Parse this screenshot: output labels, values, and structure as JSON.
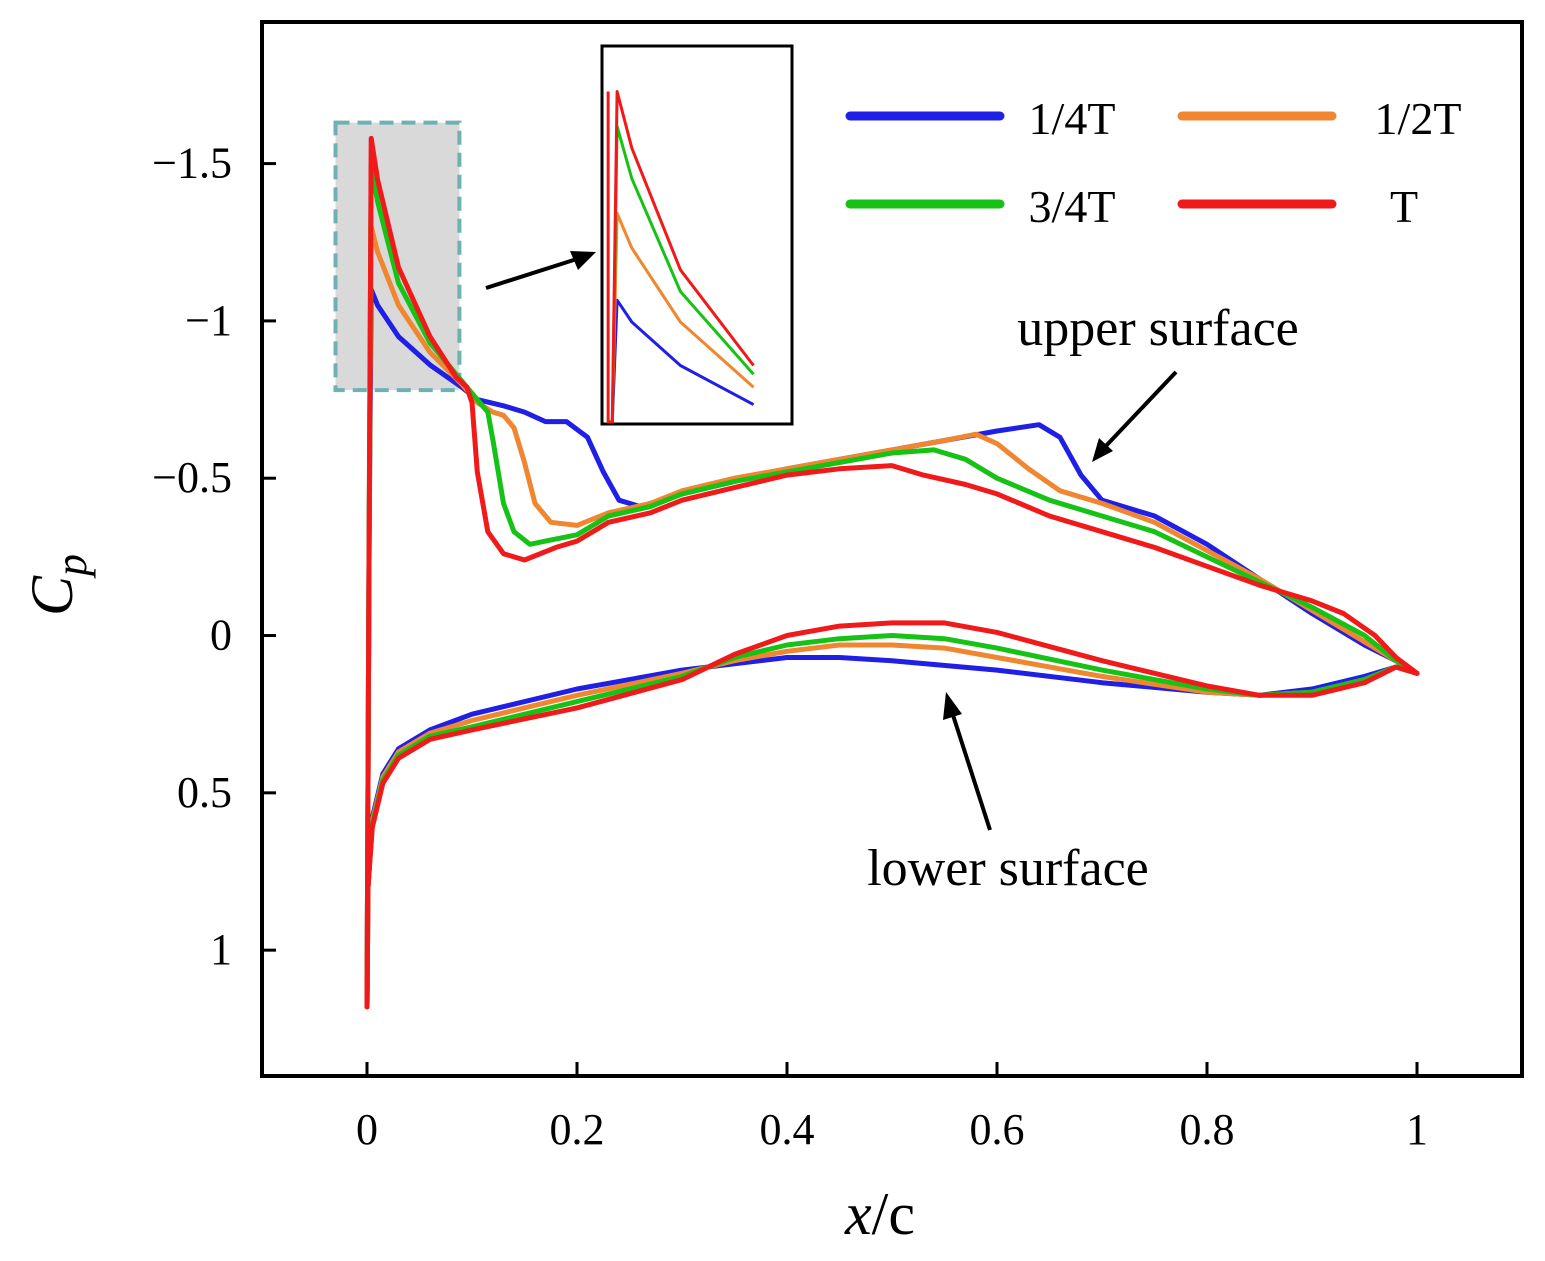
{
  "chart_data": {
    "type": "line",
    "xlabel_var": "x",
    "xlabel_rest": "/c",
    "ylabel_var": "C",
    "ylabel_sub": "p",
    "xlim": [
      -0.1,
      1.1
    ],
    "ylim": [
      1.4,
      -1.95
    ],
    "y_inverted": true,
    "xticks": [
      0,
      0.2,
      0.4,
      0.6,
      0.8,
      1
    ],
    "xtick_labels": [
      "0",
      "0.2",
      "0.4",
      "0.6",
      "0.8",
      "1"
    ],
    "yticks": [
      -1.5,
      -1,
      -0.5,
      0,
      0.5,
      1
    ],
    "ytick_labels": [
      "−1.5",
      "−1",
      "−0.5",
      "0",
      "0.5",
      "1"
    ],
    "grid": false,
    "legend_position": "top-right",
    "annotations": [
      "upper surface",
      "lower surface"
    ],
    "series": [
      {
        "name": "1/4T",
        "color": "#1f1fe6",
        "upper": [
          [
            0,
            1.18
          ],
          [
            0.002,
            -0.3
          ],
          [
            0.004,
            -1.1
          ],
          [
            0.01,
            -1.05
          ],
          [
            0.03,
            -0.95
          ],
          [
            0.06,
            -0.86
          ],
          [
            0.09,
            -0.79
          ],
          [
            0.105,
            -0.75
          ],
          [
            0.13,
            -0.73
          ],
          [
            0.15,
            -0.71
          ],
          [
            0.17,
            -0.68
          ],
          [
            0.19,
            -0.68
          ],
          [
            0.21,
            -0.63
          ],
          [
            0.225,
            -0.52
          ],
          [
            0.24,
            -0.43
          ],
          [
            0.26,
            -0.41
          ],
          [
            0.3,
            -0.45
          ],
          [
            0.35,
            -0.49
          ],
          [
            0.4,
            -0.53
          ],
          [
            0.45,
            -0.56
          ],
          [
            0.5,
            -0.59
          ],
          [
            0.55,
            -0.62
          ],
          [
            0.6,
            -0.65
          ],
          [
            0.64,
            -0.67
          ],
          [
            0.66,
            -0.63
          ],
          [
            0.68,
            -0.51
          ],
          [
            0.7,
            -0.43
          ],
          [
            0.75,
            -0.38
          ],
          [
            0.8,
            -0.29
          ],
          [
            0.85,
            -0.18
          ],
          [
            0.9,
            -0.07
          ],
          [
            0.95,
            0.03
          ],
          [
            0.98,
            0.08
          ],
          [
            1.0,
            0.12
          ]
        ],
        "lower": [
          [
            0,
            1.18
          ],
          [
            0.001,
            0.8
          ],
          [
            0.005,
            0.58
          ],
          [
            0.015,
            0.44
          ],
          [
            0.03,
            0.36
          ],
          [
            0.06,
            0.3
          ],
          [
            0.1,
            0.25
          ],
          [
            0.2,
            0.17
          ],
          [
            0.3,
            0.11
          ],
          [
            0.35,
            0.09
          ],
          [
            0.4,
            0.07
          ],
          [
            0.45,
            0.07
          ],
          [
            0.5,
            0.08
          ],
          [
            0.6,
            0.11
          ],
          [
            0.7,
            0.15
          ],
          [
            0.8,
            0.18
          ],
          [
            0.85,
            0.19
          ],
          [
            0.9,
            0.17
          ],
          [
            0.95,
            0.13
          ],
          [
            0.98,
            0.1
          ],
          [
            1.0,
            0.12
          ]
        ]
      },
      {
        "name": "1/2T",
        "color": "#f0862f",
        "upper": [
          [
            0,
            1.18
          ],
          [
            0.002,
            -0.3
          ],
          [
            0.004,
            -1.3
          ],
          [
            0.01,
            -1.22
          ],
          [
            0.03,
            -1.05
          ],
          [
            0.06,
            -0.9
          ],
          [
            0.09,
            -0.8
          ],
          [
            0.105,
            -0.74
          ],
          [
            0.12,
            -0.71
          ],
          [
            0.13,
            -0.7
          ],
          [
            0.14,
            -0.66
          ],
          [
            0.15,
            -0.55
          ],
          [
            0.16,
            -0.42
          ],
          [
            0.175,
            -0.36
          ],
          [
            0.2,
            -0.35
          ],
          [
            0.23,
            -0.39
          ],
          [
            0.27,
            -0.42
          ],
          [
            0.3,
            -0.46
          ],
          [
            0.35,
            -0.5
          ],
          [
            0.4,
            -0.53
          ],
          [
            0.45,
            -0.56
          ],
          [
            0.5,
            -0.59
          ],
          [
            0.55,
            -0.62
          ],
          [
            0.58,
            -0.64
          ],
          [
            0.6,
            -0.61
          ],
          [
            0.63,
            -0.53
          ],
          [
            0.66,
            -0.46
          ],
          [
            0.7,
            -0.42
          ],
          [
            0.75,
            -0.36
          ],
          [
            0.8,
            -0.27
          ],
          [
            0.85,
            -0.18
          ],
          [
            0.9,
            -0.08
          ],
          [
            0.95,
            0.02
          ],
          [
            0.98,
            0.08
          ],
          [
            1.0,
            0.12
          ]
        ],
        "lower": [
          [
            0,
            1.18
          ],
          [
            0.001,
            0.8
          ],
          [
            0.005,
            0.59
          ],
          [
            0.015,
            0.45
          ],
          [
            0.03,
            0.37
          ],
          [
            0.06,
            0.31
          ],
          [
            0.1,
            0.27
          ],
          [
            0.2,
            0.19
          ],
          [
            0.3,
            0.12
          ],
          [
            0.35,
            0.08
          ],
          [
            0.4,
            0.05
          ],
          [
            0.45,
            0.03
          ],
          [
            0.5,
            0.03
          ],
          [
            0.55,
            0.04
          ],
          [
            0.6,
            0.07
          ],
          [
            0.7,
            0.13
          ],
          [
            0.8,
            0.18
          ],
          [
            0.85,
            0.19
          ],
          [
            0.9,
            0.18
          ],
          [
            0.95,
            0.14
          ],
          [
            0.98,
            0.1
          ],
          [
            1.0,
            0.12
          ]
        ]
      },
      {
        "name": "3/4T",
        "color": "#17c217",
        "upper": [
          [
            0,
            1.18
          ],
          [
            0.002,
            -0.3
          ],
          [
            0.004,
            -1.5
          ],
          [
            0.01,
            -1.38
          ],
          [
            0.03,
            -1.12
          ],
          [
            0.06,
            -0.93
          ],
          [
            0.09,
            -0.81
          ],
          [
            0.1,
            -0.77
          ],
          [
            0.115,
            -0.71
          ],
          [
            0.12,
            -0.62
          ],
          [
            0.13,
            -0.42
          ],
          [
            0.14,
            -0.33
          ],
          [
            0.155,
            -0.29
          ],
          [
            0.17,
            -0.3
          ],
          [
            0.2,
            -0.32
          ],
          [
            0.23,
            -0.38
          ],
          [
            0.27,
            -0.41
          ],
          [
            0.3,
            -0.45
          ],
          [
            0.35,
            -0.49
          ],
          [
            0.4,
            -0.52
          ],
          [
            0.45,
            -0.55
          ],
          [
            0.5,
            -0.58
          ],
          [
            0.54,
            -0.59
          ],
          [
            0.57,
            -0.56
          ],
          [
            0.6,
            -0.5
          ],
          [
            0.65,
            -0.43
          ],
          [
            0.7,
            -0.38
          ],
          [
            0.75,
            -0.33
          ],
          [
            0.8,
            -0.25
          ],
          [
            0.85,
            -0.17
          ],
          [
            0.9,
            -0.09
          ],
          [
            0.95,
            0.0
          ],
          [
            0.98,
            0.08
          ],
          [
            1.0,
            0.12
          ]
        ],
        "lower": [
          [
            0,
            1.18
          ],
          [
            0.001,
            0.8
          ],
          [
            0.005,
            0.6
          ],
          [
            0.015,
            0.46
          ],
          [
            0.03,
            0.38
          ],
          [
            0.06,
            0.32
          ],
          [
            0.1,
            0.29
          ],
          [
            0.2,
            0.21
          ],
          [
            0.3,
            0.13
          ],
          [
            0.35,
            0.07
          ],
          [
            0.4,
            0.03
          ],
          [
            0.45,
            0.01
          ],
          [
            0.5,
            0.0
          ],
          [
            0.55,
            0.01
          ],
          [
            0.6,
            0.04
          ],
          [
            0.7,
            0.11
          ],
          [
            0.8,
            0.17
          ],
          [
            0.85,
            0.19
          ],
          [
            0.9,
            0.18
          ],
          [
            0.95,
            0.14
          ],
          [
            0.98,
            0.1
          ],
          [
            1.0,
            0.12
          ]
        ]
      },
      {
        "name": "T",
        "color": "#f01a1a",
        "upper": [
          [
            0,
            1.18
          ],
          [
            0.002,
            -0.3
          ],
          [
            0.004,
            -1.58
          ],
          [
            0.01,
            -1.45
          ],
          [
            0.03,
            -1.17
          ],
          [
            0.06,
            -0.95
          ],
          [
            0.085,
            -0.82
          ],
          [
            0.095,
            -0.79
          ],
          [
            0.1,
            -0.74
          ],
          [
            0.105,
            -0.52
          ],
          [
            0.115,
            -0.33
          ],
          [
            0.13,
            -0.26
          ],
          [
            0.15,
            -0.24
          ],
          [
            0.18,
            -0.28
          ],
          [
            0.2,
            -0.3
          ],
          [
            0.23,
            -0.36
          ],
          [
            0.27,
            -0.39
          ],
          [
            0.3,
            -0.43
          ],
          [
            0.35,
            -0.47
          ],
          [
            0.4,
            -0.51
          ],
          [
            0.45,
            -0.53
          ],
          [
            0.5,
            -0.54
          ],
          [
            0.53,
            -0.51
          ],
          [
            0.57,
            -0.48
          ],
          [
            0.6,
            -0.45
          ],
          [
            0.65,
            -0.38
          ],
          [
            0.7,
            -0.33
          ],
          [
            0.75,
            -0.28
          ],
          [
            0.8,
            -0.22
          ],
          [
            0.85,
            -0.16
          ],
          [
            0.9,
            -0.11
          ],
          [
            0.93,
            -0.07
          ],
          [
            0.96,
            0.0
          ],
          [
            0.98,
            0.07
          ],
          [
            1.0,
            0.12
          ]
        ],
        "lower": [
          [
            0,
            1.18
          ],
          [
            0.001,
            0.8
          ],
          [
            0.005,
            0.61
          ],
          [
            0.015,
            0.47
          ],
          [
            0.03,
            0.39
          ],
          [
            0.06,
            0.33
          ],
          [
            0.1,
            0.3
          ],
          [
            0.2,
            0.23
          ],
          [
            0.3,
            0.14
          ],
          [
            0.35,
            0.06
          ],
          [
            0.4,
            0.0
          ],
          [
            0.45,
            -0.03
          ],
          [
            0.5,
            -0.04
          ],
          [
            0.55,
            -0.04
          ],
          [
            0.6,
            -0.01
          ],
          [
            0.7,
            0.08
          ],
          [
            0.8,
            0.16
          ],
          [
            0.85,
            0.19
          ],
          [
            0.9,
            0.19
          ],
          [
            0.95,
            0.15
          ],
          [
            0.98,
            0.1
          ],
          [
            1.0,
            0.12
          ]
        ]
      }
    ]
  }
}
